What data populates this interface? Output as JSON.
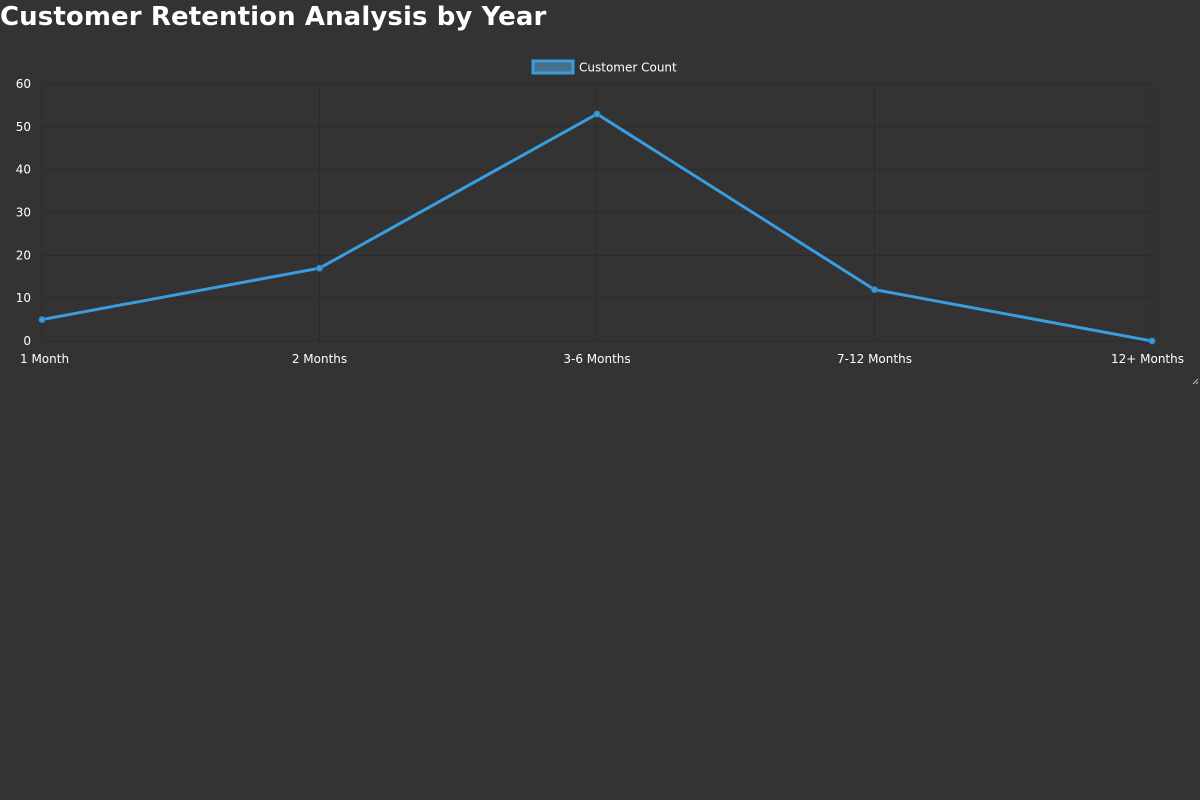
{
  "page": {
    "title": "Customer Retention Analysis by Year"
  },
  "colors": {
    "background": "#333333",
    "series": "#3a9de0",
    "legendFill": "#4a6f8c",
    "grid": "#2b2b2b",
    "text": "#ffffff"
  },
  "chart_data": {
    "type": "line",
    "title": "Customer Retention Analysis by Year",
    "xlabel": "",
    "ylabel": "",
    "categories": [
      "1 Month",
      "2 Months",
      "3-6 Months",
      "7-12 Months",
      "12+ Months"
    ],
    "series": [
      {
        "name": "Customer Count",
        "values": [
          5,
          17,
          53,
          12,
          0
        ]
      }
    ],
    "ylim": [
      0,
      60
    ],
    "yticks": [
      0,
      10,
      20,
      30,
      40,
      50,
      60
    ],
    "grid": true,
    "legend": "top-center"
  }
}
